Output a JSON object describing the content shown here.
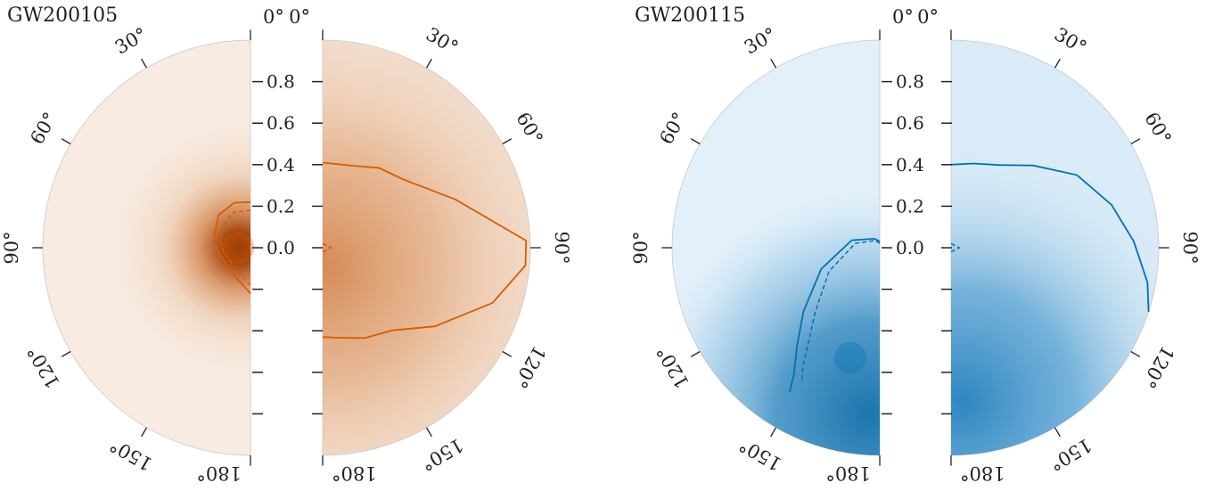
{
  "chart_data": [
    {
      "type": "heatmap",
      "title": "GW200105",
      "color": "#d55e00",
      "ticks_angle": [
        "0°",
        "30°",
        "60°",
        "90°",
        "120°",
        "150°",
        "180°"
      ],
      "ticks_radius": [
        "0.0",
        "0.2",
        "0.4",
        "0.6",
        "0.8"
      ],
      "rlim": [
        0,
        1
      ],
      "left_panel": {
        "solid_contour": [
          [
            0.22,
            0
          ],
          [
            0.23,
            20
          ],
          [
            0.22,
            45
          ],
          [
            0.18,
            80
          ],
          [
            0.15,
            105
          ],
          [
            0.14,
            130
          ],
          [
            0.16,
            155
          ],
          [
            0.22,
            180
          ]
        ],
        "dashed_contour": [
          [
            0.18,
            0
          ],
          [
            0.19,
            25
          ],
          [
            0.17,
            55
          ],
          [
            0.14,
            90
          ],
          [
            0.12,
            115
          ],
          [
            0.12,
            140
          ],
          [
            0.14,
            160
          ],
          [
            0.18,
            180
          ]
        ],
        "hotspot": [
          0.06,
          90
        ]
      },
      "right_panel": {
        "solid_contour": [
          [
            0.41,
            0
          ],
          [
            0.42,
            20
          ],
          [
            0.47,
            35
          ],
          [
            0.51,
            50
          ],
          [
            0.68,
            70
          ],
          [
            0.98,
            88
          ],
          [
            0.98,
            95
          ],
          [
            0.86,
            108
          ],
          [
            0.66,
            125
          ],
          [
            0.52,
            140
          ],
          [
            0.48,
            155
          ],
          [
            0.44,
            170
          ],
          [
            0.43,
            180
          ]
        ],
        "dashed_contour": [
          [
            0.02,
            0
          ],
          [
            0.04,
            90
          ],
          [
            0.02,
            180
          ]
        ]
      }
    },
    {
      "type": "heatmap",
      "title": "GW200115",
      "color": "#0072b2",
      "ticks_angle": [
        "0°",
        "30°",
        "60°",
        "90°",
        "120°",
        "150°",
        "180°"
      ],
      "ticks_radius": [
        "0.0",
        "0.2",
        "0.4",
        "0.6",
        "0.8"
      ],
      "rlim": [
        0,
        1
      ],
      "left_panel": {
        "solid_contour": [
          [
            0.03,
            0
          ],
          [
            0.05,
            30
          ],
          [
            0.14,
            75
          ],
          [
            0.3,
            110
          ],
          [
            0.48,
            130
          ],
          [
            0.62,
            140
          ],
          [
            0.74,
            146
          ],
          [
            0.82,
            148
          ]
        ],
        "dashed_contour": [
          [
            0.02,
            0
          ],
          [
            0.04,
            30
          ],
          [
            0.12,
            80
          ],
          [
            0.27,
            115
          ],
          [
            0.44,
            135
          ],
          [
            0.57,
            143
          ],
          [
            0.68,
            147
          ],
          [
            0.75,
            150
          ]
        ],
        "hotspot": [
          0.55,
          165
        ]
      },
      "right_panel": {
        "solid_contour": [
          [
            0.4,
            0
          ],
          [
            0.42,
            15
          ],
          [
            0.46,
            30
          ],
          [
            0.56,
            45
          ],
          [
            0.7,
            60
          ],
          [
            0.8,
            75
          ],
          [
            0.88,
            88
          ],
          [
            0.96,
            100
          ],
          [
            1.0,
            108
          ]
        ],
        "dashed_contour": [
          [
            0.02,
            0
          ],
          [
            0.04,
            90
          ],
          [
            0.02,
            180
          ]
        ]
      }
    }
  ]
}
